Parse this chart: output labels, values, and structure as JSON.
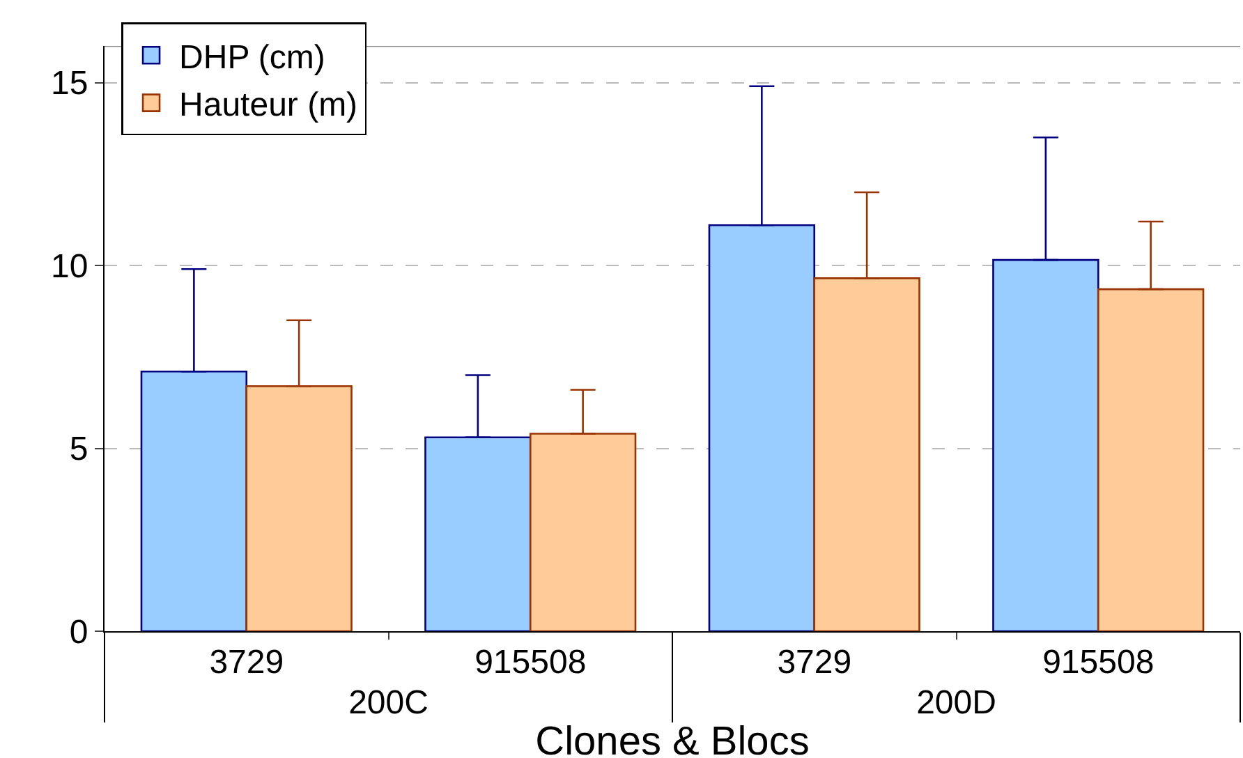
{
  "chart_data": {
    "type": "bar",
    "xlabel": "Clones & Blocs",
    "categories": [
      "3729",
      "915508",
      "3729",
      "915508"
    ],
    "annotations": [
      "200C",
      "200D"
    ],
    "series": [
      {
        "name": "DHP (cm)",
        "color": "#99ccff",
        "values": [
          7.1,
          5.3,
          11.1,
          10.15
        ],
        "errors": [
          [
            7.1,
            9.9
          ],
          [
            5.3,
            7.0
          ],
          [
            11.1,
            14.9
          ],
          [
            10.15,
            13.5
          ]
        ]
      },
      {
        "name": "Hauteur (m)",
        "color": "#ffcc99",
        "values": [
          6.7,
          5.4,
          9.65,
          9.35
        ],
        "errors": [
          [
            6.7,
            8.5
          ],
          [
            5.4,
            6.6
          ],
          [
            9.65,
            12.0
          ],
          [
            9.35,
            11.2
          ]
        ]
      }
    ],
    "ylim": [
      0,
      16
    ],
    "yticks": [
      0,
      5,
      10,
      15
    ],
    "grid": "y",
    "legend": "top left"
  }
}
